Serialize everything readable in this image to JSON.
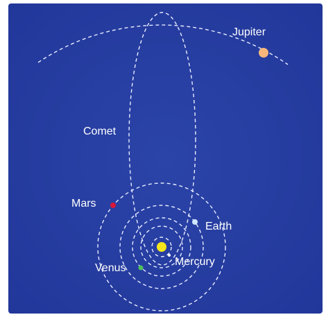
{
  "bodies": {
    "jupiter": "Jupiter",
    "comet": "Comet",
    "mars": "Mars",
    "earth": "Earth",
    "mercury": "Mercury",
    "venus": "Venus"
  }
}
